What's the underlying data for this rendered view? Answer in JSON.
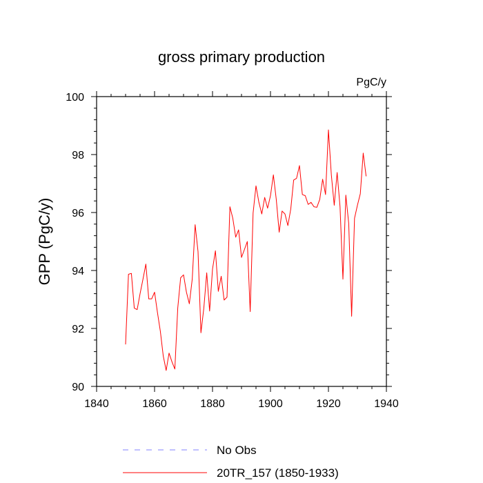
{
  "chart_data": {
    "type": "line",
    "title": "gross primary production",
    "units": "PgC/y",
    "xlabel": "",
    "ylabel": "GPP  (PgC/y)",
    "xlim": [
      1840,
      1940
    ],
    "ylim": [
      90,
      100
    ],
    "x_ticks": [
      1840,
      1860,
      1880,
      1900,
      1920,
      1940
    ],
    "y_ticks": [
      90,
      92,
      94,
      96,
      98,
      100
    ],
    "x_tick_labels": [
      "1840",
      "1860",
      "1880",
      "1900",
      "1920",
      "1940"
    ],
    "y_tick_labels": [
      "90",
      "92",
      "94",
      "96",
      "98",
      "100"
    ],
    "legend": {
      "position": "bottom",
      "entries": [
        {
          "label": "No Obs",
          "color": "#8080ff",
          "style": "dashed"
        },
        {
          "label": "20TR_157 (1850-1933)",
          "color": "#ff0000",
          "style": "solid"
        }
      ]
    },
    "series": [
      {
        "name": "20TR_157 (1850-1933)",
        "color": "#ff0000",
        "x": [
          1850,
          1851,
          1852,
          1853,
          1854,
          1855,
          1856,
          1857,
          1858,
          1859,
          1860,
          1861,
          1862,
          1863,
          1864,
          1865,
          1866,
          1867,
          1868,
          1869,
          1870,
          1871,
          1872,
          1873,
          1874,
          1875,
          1876,
          1877,
          1878,
          1879,
          1880,
          1881,
          1882,
          1883,
          1884,
          1885,
          1886,
          1887,
          1888,
          1889,
          1890,
          1891,
          1892,
          1893,
          1894,
          1895,
          1896,
          1897,
          1898,
          1899,
          1900,
          1901,
          1902,
          1903,
          1904,
          1905,
          1906,
          1907,
          1908,
          1909,
          1910,
          1911,
          1912,
          1913,
          1914,
          1915,
          1916,
          1917,
          1918,
          1919,
          1920,
          1921,
          1922,
          1923,
          1924,
          1925,
          1926,
          1927,
          1928,
          1929,
          1930,
          1931,
          1932,
          1933
        ],
        "values": [
          91.45,
          93.87,
          93.9,
          92.7,
          92.65,
          93.2,
          93.7,
          94.22,
          93.02,
          93.02,
          93.25,
          92.55,
          91.9,
          91.05,
          90.55,
          91.15,
          90.85,
          90.6,
          92.7,
          93.75,
          93.85,
          93.25,
          92.85,
          93.7,
          95.58,
          94.65,
          91.85,
          92.7,
          93.92,
          92.6,
          94.05,
          94.68,
          93.28,
          93.8,
          92.98,
          93.08,
          96.2,
          95.8,
          95.15,
          95.4,
          94.45,
          94.72,
          95.0,
          92.58,
          95.98,
          96.92,
          96.35,
          95.95,
          96.52,
          96.15,
          96.58,
          97.3,
          96.45,
          95.32,
          96.05,
          95.95,
          95.55,
          96.12,
          97.12,
          97.18,
          97.62,
          96.62,
          96.58,
          96.28,
          96.35,
          96.2,
          96.18,
          96.45,
          97.15,
          96.62,
          98.85,
          97.3,
          96.25,
          97.38,
          96.2,
          93.7,
          96.6,
          95.62,
          92.42,
          95.8,
          96.25,
          96.65,
          98.05,
          97.25
        ]
      }
    ]
  }
}
